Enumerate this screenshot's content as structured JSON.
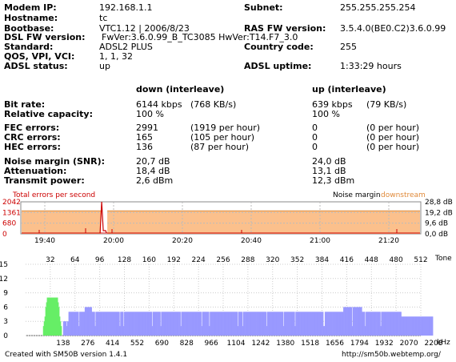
{
  "info": {
    "modem_ip_label": "Modem IP:",
    "modem_ip": "192.168.1.1",
    "subnet_label": "Subnet:",
    "subnet": "255.255.255.254",
    "hostname_label": "Hostname:",
    "hostname": "tc",
    "bootbase_label": "Bootbase:",
    "bootbase": "VTC1.12 | 2006/8/23",
    "ras_label": "RAS FW version:",
    "ras": "3.5.4.0(BE0.C2)3.6.0.99",
    "dsl_fw_label": "DSL FW version:",
    "dsl_fw": "FwVer:3.6.0.99_B_TC3085 HwVer:T14.F7_3.0",
    "standard_label": "Standard:",
    "standard": "ADSL2 PLUS",
    "country_label": "Country code:",
    "country": "255",
    "qos_label": "QOS, VPI, VCI:",
    "qos": "1, 1, 32",
    "adsl_status_label": "ADSL status:",
    "adsl_status": "up",
    "uptime_label": "ADSL uptime:",
    "uptime": "1:33:29 hours"
  },
  "stats": {
    "down_header": "down (interleave)",
    "up_header": "up (interleave)",
    "rows": [
      {
        "label": "Bit rate:",
        "down": "6144 kbps",
        "down_extra": "(768 KB/s)",
        "up": "639 kbps",
        "up_extra": "(79 KB/s)"
      },
      {
        "label": "Relative capacity:",
        "down": "100 %",
        "down_extra": "",
        "up": "100 %",
        "up_extra": ""
      },
      {
        "label": "FEC errors:",
        "down": "2991",
        "down_extra": "(1919 per hour)",
        "up": "0",
        "up_extra": "(0 per hour)"
      },
      {
        "label": "CRC errors:",
        "down": "165",
        "down_extra": "(105 per hour)",
        "up": "0",
        "up_extra": "(0 per hour)"
      },
      {
        "label": "HEC errors:",
        "down": "136",
        "down_extra": "(87 per hour)",
        "up": "0",
        "up_extra": "(0 per hour)"
      },
      {
        "label": "Noise margin (SNR):",
        "down": "20,7 dB",
        "down_extra": "",
        "up": "24,0 dB",
        "up_extra": ""
      },
      {
        "label": "Attenuation:",
        "down": "18,4 dB",
        "down_extra": "",
        "up": "13,1 dB",
        "up_extra": ""
      },
      {
        "label": "Transmit power:",
        "down": "2,6 dBm",
        "down_extra": "",
        "up": "12,3 dBm",
        "up_extra": ""
      }
    ]
  },
  "colors": {
    "errors": "#cc0000",
    "margin_fill": "#fbc08c",
    "margin_label": "#e08a3a",
    "upstream_bins": "#66ee66",
    "downstream_bins": "#9999ff",
    "grid": "#cccccc"
  },
  "chart_data": [
    {
      "type": "area",
      "title_left": "Total errors per second",
      "title_right_1": "Noise margin",
      "title_right_2": "downstream",
      "y_left_ticks": [
        "2042",
        "1361",
        "680",
        "0"
      ],
      "y_right_ticks": [
        "28,8 dB",
        "19,2 dB",
        "9,6 dB",
        "0,0 dB"
      ],
      "x_ticks": [
        "19:40",
        "20:00",
        "20:20",
        "20:40",
        "21:00",
        "21:20"
      ],
      "ylim_left": [
        0,
        2042
      ],
      "ylim_right": [
        0,
        28.8
      ],
      "noise_margin_downstream_db": 20.7,
      "error_spike": {
        "time": "19:57",
        "value": 2042
      }
    },
    {
      "type": "bar",
      "x_label": "kHz",
      "top_axis_label": "Tone",
      "y_ticks": [
        "15",
        "12",
        "9",
        "6",
        "3",
        "0"
      ],
      "ylim": [
        0,
        15
      ],
      "tone_ticks": [
        "32",
        "64",
        "96",
        "128",
        "160",
        "192",
        "224",
        "256",
        "288",
        "320",
        "352",
        "384",
        "416",
        "448",
        "480",
        "512"
      ],
      "khz_ticks": [
        "138",
        "276",
        "414",
        "552",
        "690",
        "828",
        "966",
        "1104",
        "1242",
        "1380",
        "1518",
        "1656",
        "1794",
        "1932",
        "2070",
        "2208"
      ],
      "series": [
        {
          "name": "upstream",
          "tone_range": [
            6,
            31
          ],
          "peak_bits": 8
        },
        {
          "name": "downstream",
          "tone_range": [
            33,
            511
          ],
          "typical_bits": 5,
          "max_bits": 6
        }
      ]
    }
  ],
  "footer": {
    "left": "Created with SM50B version 1.4.1",
    "right": "http://sm50b.webtemp.org/"
  }
}
